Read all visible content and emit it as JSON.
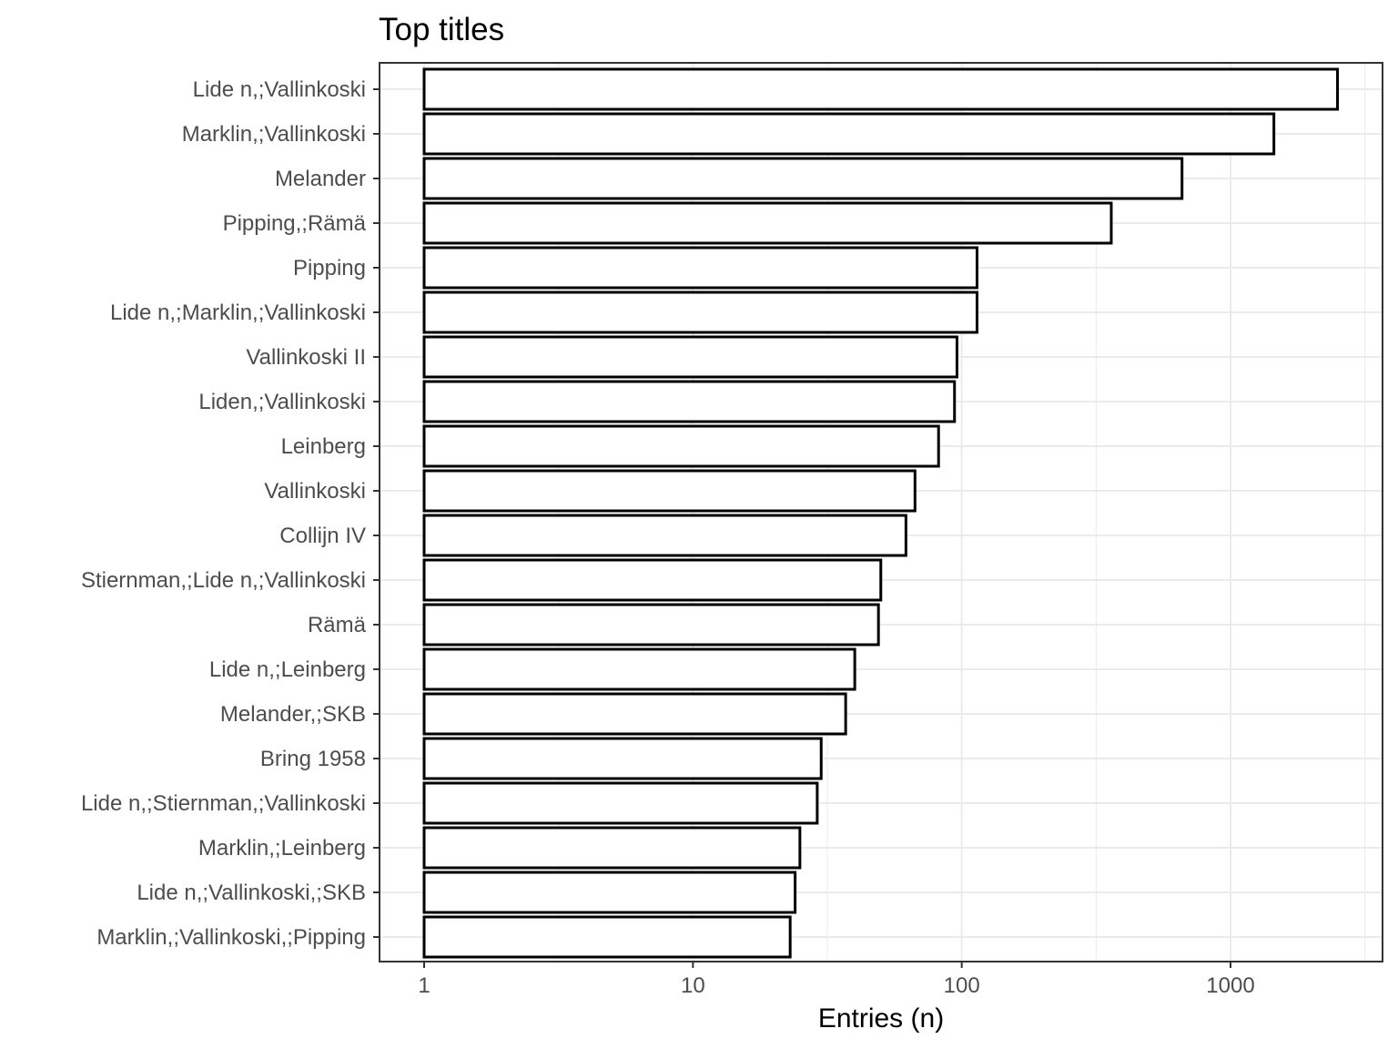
{
  "chart_data": {
    "type": "bar",
    "orientation": "horizontal",
    "title": "Top titles",
    "xlabel": "Entries (n)",
    "ylabel": "",
    "x_scale": "log10",
    "xlim": [
      1,
      3500
    ],
    "x_ticks": [
      1,
      10,
      100,
      1000
    ],
    "x_tick_labels": [
      "1",
      "10",
      "100",
      "1000"
    ],
    "grid": true,
    "categories": [
      "Lide n,;Vallinkoski",
      "Marklin,;Vallinkoski",
      "Melander",
      "Pipping,;Rämä",
      "Pipping",
      "Lide n,;Marklin,;Vallinkoski",
      "Vallinkoski II",
      "Liden,;Vallinkoski",
      "Leinberg",
      "Vallinkoski",
      "Collijn IV",
      "Stiernman,;Lide n,;Vallinkoski",
      "Rämä",
      "Lide n,;Leinberg",
      "Melander,;SKB",
      "Bring 1958",
      "Lide n,;Stiernman,;Vallinkoski",
      "Marklin,;Leinberg",
      "Lide n,;Vallinkoski,;SKB",
      "Marklin,;Vallinkoski,;Pipping"
    ],
    "values": [
      2500,
      1450,
      660,
      360,
      114,
      114,
      96,
      94,
      82,
      67,
      62,
      50,
      49,
      40,
      37,
      30,
      29,
      25,
      24,
      23
    ]
  }
}
